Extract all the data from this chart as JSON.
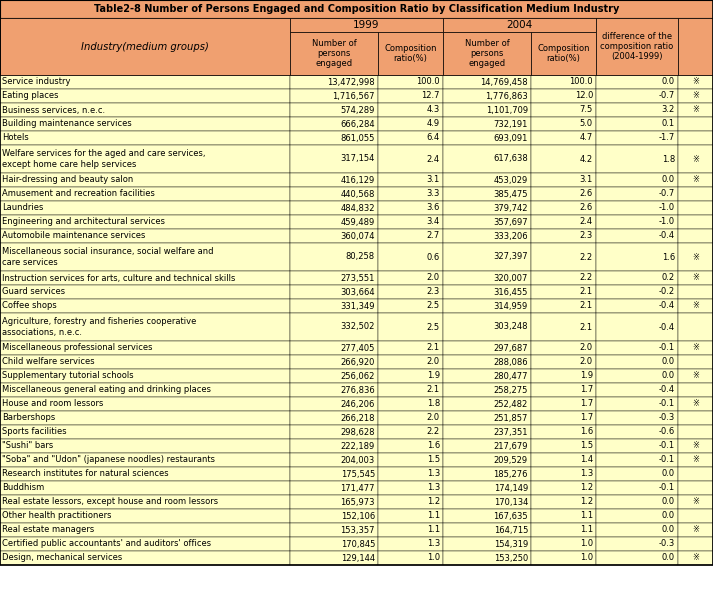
{
  "title": "Table2-8 Number of Persons Engaged and Composition Ratio by Classification Medium Industry",
  "header_bg": "#F5A964",
  "title_bg": "#F5A964",
  "row_bg": "#FFFFC0",
  "border_color": "#000000",
  "mark_char": "※",
  "rows": [
    [
      "Service industry",
      "13,472,998",
      "100.0",
      "14,769,458",
      "100.0",
      "0.0",
      true
    ],
    [
      "Eating places",
      "1,716,567",
      "12.7",
      "1,776,863",
      "12.0",
      "-0.7",
      true
    ],
    [
      "Business services, n.e.c.",
      "574,289",
      "4.3",
      "1,101,709",
      "7.5",
      "3.2",
      true
    ],
    [
      "Building maintenance services",
      "666,284",
      "4.9",
      "732,191",
      "5.0",
      "0.1",
      false
    ],
    [
      "Hotels",
      "861,055",
      "6.4",
      "693,091",
      "4.7",
      "-1.7",
      false
    ],
    [
      "Welfare services for the aged and care services,\nexcept home care help services",
      "317,154",
      "2.4",
      "617,638",
      "4.2",
      "1.8",
      true
    ],
    [
      "Hair-dressing and beauty salon",
      "416,129",
      "3.1",
      "453,029",
      "3.1",
      "0.0",
      true
    ],
    [
      "Amusement and recreation facilities",
      "440,568",
      "3.3",
      "385,475",
      "2.6",
      "-0.7",
      false
    ],
    [
      "Laundries",
      "484,832",
      "3.6",
      "379,742",
      "2.6",
      "-1.0",
      false
    ],
    [
      "Engineering and architectural services",
      "459,489",
      "3.4",
      "357,697",
      "2.4",
      "-1.0",
      false
    ],
    [
      "Automobile maintenance services",
      "360,074",
      "2.7",
      "333,206",
      "2.3",
      "-0.4",
      false
    ],
    [
      "Miscellaneous social insurance, social welfare and\ncare services",
      "80,258",
      "0.6",
      "327,397",
      "2.2",
      "1.6",
      true
    ],
    [
      "Instruction services for arts, culture and technical skills",
      "273,551",
      "2.0",
      "320,007",
      "2.2",
      "0.2",
      true
    ],
    [
      "Guard services",
      "303,664",
      "2.3",
      "316,455",
      "2.1",
      "-0.2",
      false
    ],
    [
      "Coffee shops",
      "331,349",
      "2.5",
      "314,959",
      "2.1",
      "-0.4",
      true
    ],
    [
      "Agriculture, forestry and fisheries cooperative\nassociations, n.e.c.",
      "332,502",
      "2.5",
      "303,248",
      "2.1",
      "-0.4",
      false
    ],
    [
      "Miscellaneous professional services",
      "277,405",
      "2.1",
      "297,687",
      "2.0",
      "-0.1",
      true
    ],
    [
      "Child welfare services",
      "266,920",
      "2.0",
      "288,086",
      "2.0",
      "0.0",
      false
    ],
    [
      "Supplementary tutorial schools",
      "256,062",
      "1.9",
      "280,477",
      "1.9",
      "0.0",
      true
    ],
    [
      "Miscellaneous general eating and drinking places",
      "276,836",
      "2.1",
      "258,275",
      "1.7",
      "-0.4",
      false
    ],
    [
      "House and room lessors",
      "246,206",
      "1.8",
      "252,482",
      "1.7",
      "-0.1",
      true
    ],
    [
      "Barbershops",
      "266,218",
      "2.0",
      "251,857",
      "1.7",
      "-0.3",
      false
    ],
    [
      "Sports facilities",
      "298,628",
      "2.2",
      "237,351",
      "1.6",
      "-0.6",
      false
    ],
    [
      "\"Sushi\" bars",
      "222,189",
      "1.6",
      "217,679",
      "1.5",
      "-0.1",
      true
    ],
    [
      "\"Soba\" and \"Udon\" (japanese noodles) restaurants",
      "204,003",
      "1.5",
      "209,529",
      "1.4",
      "-0.1",
      true
    ],
    [
      "Research institutes for natural sciences",
      "175,545",
      "1.3",
      "185,276",
      "1.3",
      "0.0",
      false
    ],
    [
      "Buddhism",
      "171,477",
      "1.3",
      "174,149",
      "1.2",
      "-0.1",
      false
    ],
    [
      "Real estate lessors, except house and room lessors",
      "165,973",
      "1.2",
      "170,134",
      "1.2",
      "0.0",
      true
    ],
    [
      "Other health practitioners",
      "152,106",
      "1.1",
      "167,635",
      "1.1",
      "0.0",
      false
    ],
    [
      "Real estate managers",
      "153,357",
      "1.1",
      "164,715",
      "1.1",
      "0.0",
      true
    ],
    [
      "Certified public accountants' and auditors' offices",
      "170,845",
      "1.3",
      "154,319",
      "1.0",
      "-0.3",
      false
    ],
    [
      "Design, mechanical services",
      "129,144",
      "1.0",
      "153,250",
      "1.0",
      "0.0",
      true
    ]
  ]
}
